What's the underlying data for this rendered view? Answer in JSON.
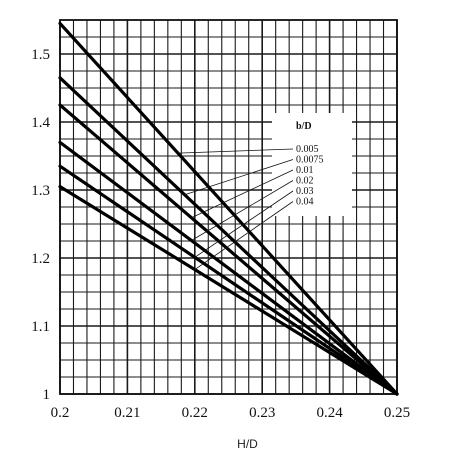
{
  "chart_data": {
    "type": "line",
    "xlabel": "H/D",
    "ylabel": "",
    "xlim": [
      0.2,
      0.25
    ],
    "ylim": [
      1.0,
      1.55
    ],
    "x_ticks": [
      "0.2",
      "0.21",
      "0.22",
      "0.23",
      "0.24",
      "0.25"
    ],
    "y_ticks": [
      "1",
      "1.1",
      "1.2",
      "1.3",
      "1.4",
      "1.5"
    ],
    "grid": true,
    "legend": {
      "title": "b/D",
      "placement": "right, above middle",
      "entries": [
        "0.005",
        "0.0075",
        "0.01",
        "0.02",
        "0.03",
        "0.04"
      ]
    },
    "series": [
      {
        "name": "0.005",
        "x": [
          0.2,
          0.25
        ],
        "y": [
          1.545,
          1.0
        ]
      },
      {
        "name": "0.0075",
        "x": [
          0.2,
          0.25
        ],
        "y": [
          1.465,
          1.0
        ]
      },
      {
        "name": "0.01",
        "x": [
          0.2,
          0.25
        ],
        "y": [
          1.425,
          1.0
        ]
      },
      {
        "name": "0.02",
        "x": [
          0.2,
          0.25
        ],
        "y": [
          1.37,
          1.0
        ]
      },
      {
        "name": "0.03",
        "x": [
          0.2,
          0.25
        ],
        "y": [
          1.335,
          1.0
        ]
      },
      {
        "name": "0.04",
        "x": [
          0.2,
          0.25
        ],
        "y": [
          1.305,
          1.0
        ]
      }
    ]
  }
}
